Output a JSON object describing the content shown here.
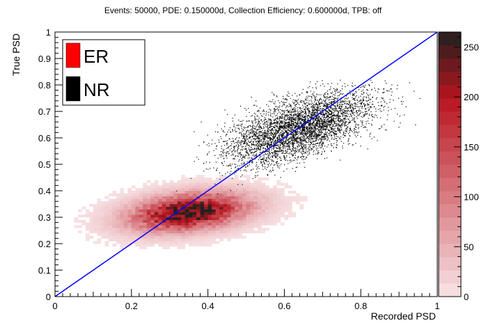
{
  "chart_data": {
    "type": "heatmap",
    "title": "Events: 50000, PDE: 0.150000d, Collection Efficiency: 0.600000d, TPB: off",
    "xlabel": "Recorded PSD",
    "ylabel": "True PSD",
    "xlim": [
      0,
      1
    ],
    "ylim": [
      0,
      1
    ],
    "x_ticks": [
      "0",
      "0.2",
      "0.4",
      "0.6",
      "0.8",
      "1"
    ],
    "y_ticks": [
      "0",
      "0.1",
      "0.2",
      "0.3",
      "0.4",
      "0.5",
      "0.6",
      "0.7",
      "0.8",
      "0.9",
      "1"
    ],
    "grid": false,
    "legend": {
      "position": "top-left",
      "entries": [
        {
          "label": "ER",
          "color": "#ff0000"
        },
        {
          "label": "NR",
          "color": "#000000"
        }
      ]
    },
    "colorbar": {
      "range": [
        0,
        265
      ],
      "tick_labels": [
        "0",
        "50",
        "100",
        "150",
        "200",
        "250"
      ],
      "low_color": "#f8e4e6",
      "mid_color": "#b8141e",
      "high_color": "#202020"
    },
    "series": [
      {
        "name": "ER",
        "kind": "2d-histogram",
        "color": "#c0101c",
        "center": [
          0.35,
          0.32
        ],
        "peak_count": 265,
        "notable_bins": [
          {
            "x": 0.33,
            "y": 0.32,
            "count": 265
          },
          {
            "x": 0.3,
            "y": 0.31,
            "count": 230
          },
          {
            "x": 0.38,
            "y": 0.33,
            "count": 200
          },
          {
            "x": 0.25,
            "y": 0.3,
            "count": 150
          },
          {
            "x": 0.45,
            "y": 0.35,
            "count": 120
          },
          {
            "x": 0.2,
            "y": 0.28,
            "count": 70
          },
          {
            "x": 0.55,
            "y": 0.38,
            "count": 40
          }
        ]
      },
      {
        "name": "NR",
        "kind": "scatter",
        "color": "#000000",
        "center": [
          0.64,
          0.64
        ],
        "extent_x": [
          0.22,
          0.97
        ],
        "extent_y": [
          0.38,
          0.82
        ]
      },
      {
        "name": "",
        "kind": "line",
        "color": "#0000ff",
        "x": [
          0,
          1
        ],
        "y": [
          0,
          1
        ]
      }
    ]
  }
}
